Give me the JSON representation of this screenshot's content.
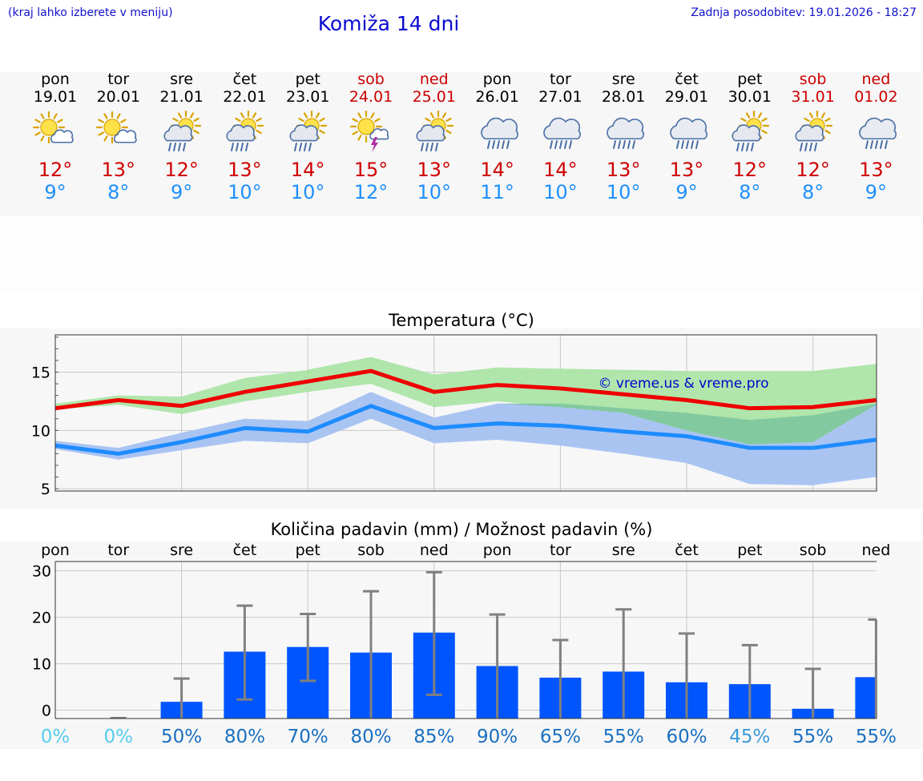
{
  "header": {
    "left_note": "(kraj lahko izberete v meniju)",
    "title": "Komiža 14 dni",
    "last_update": "Zadnja posodobitev: 19.01.2026 - 18:27"
  },
  "forecast": [
    {
      "day": "pon",
      "date": "19.01",
      "weekend": false,
      "icon": "sun-cloud-icon",
      "max": "12°",
      "min": "9°"
    },
    {
      "day": "tor",
      "date": "20.01",
      "weekend": false,
      "icon": "sun-cloud-icon",
      "max": "13°",
      "min": "8°"
    },
    {
      "day": "sre",
      "date": "21.01",
      "weekend": false,
      "icon": "sun-rain-icon",
      "max": "12°",
      "min": "9°"
    },
    {
      "day": "čet",
      "date": "22.01",
      "weekend": false,
      "icon": "sun-rain-icon",
      "max": "13°",
      "min": "10°"
    },
    {
      "day": "pet",
      "date": "23.01",
      "weekend": false,
      "icon": "sun-rain-icon",
      "max": "14°",
      "min": "10°"
    },
    {
      "day": "sob",
      "date": "24.01",
      "weekend": true,
      "icon": "sun-thunder-icon",
      "max": "15°",
      "min": "12°"
    },
    {
      "day": "ned",
      "date": "25.01",
      "weekend": true,
      "icon": "sun-rain-icon",
      "max": "13°",
      "min": "10°"
    },
    {
      "day": "pon",
      "date": "26.01",
      "weekend": false,
      "icon": "cloud-rain-icon",
      "max": "14°",
      "min": "11°"
    },
    {
      "day": "tor",
      "date": "27.01",
      "weekend": false,
      "icon": "cloud-rain-icon",
      "max": "14°",
      "min": "10°"
    },
    {
      "day": "sre",
      "date": "28.01",
      "weekend": false,
      "icon": "cloud-rain-icon",
      "max": "13°",
      "min": "10°"
    },
    {
      "day": "čet",
      "date": "29.01",
      "weekend": false,
      "icon": "cloud-rain-icon",
      "max": "13°",
      "min": "9°"
    },
    {
      "day": "pet",
      "date": "30.01",
      "weekend": false,
      "icon": "sun-rain-icon",
      "max": "12°",
      "min": "8°"
    },
    {
      "day": "sob",
      "date": "31.01",
      "weekend": true,
      "icon": "sun-rain-icon",
      "max": "12°",
      "min": "8°"
    },
    {
      "day": "ned",
      "date": "01.02",
      "weekend": true,
      "icon": "cloud-rain-icon",
      "max": "13°",
      "min": "9°"
    }
  ],
  "colors": {
    "max_line": "#ee0000",
    "min_line": "#1e8cff",
    "max_band": "#a6e4a0",
    "min_band": "#aac4f2",
    "overlap_band": "#7cc49e",
    "bar": "#0055ff",
    "whisker": "#808080",
    "credit": "#0000cc"
  },
  "chart_data": [
    {
      "type": "line",
      "title": "Temperatura (°C)",
      "xlabel": "",
      "ylabel": "",
      "ylim": [
        4.8,
        18.2
      ],
      "yticks": [
        5,
        10,
        15
      ],
      "credit": "© vreme.us & vreme.pro",
      "x": [
        0,
        1,
        2,
        3,
        4,
        5,
        6,
        7,
        8,
        9,
        10,
        11,
        12,
        13
      ],
      "series": [
        {
          "name": "max",
          "values": [
            11.9,
            12.6,
            12.1,
            13.3,
            14.2,
            15.1,
            13.3,
            13.9,
            13.6,
            13.1,
            12.6,
            11.9,
            12.0,
            12.6
          ],
          "band_low": [
            11.8,
            12.2,
            11.4,
            12.5,
            13.3,
            14.0,
            12.0,
            12.5,
            12.0,
            11.5,
            10.0,
            8.8,
            9.0,
            12.2
          ],
          "band_high": [
            12.3,
            13.0,
            12.9,
            14.5,
            15.2,
            16.3,
            14.8,
            15.4,
            15.3,
            15.2,
            15.1,
            15.1,
            15.1,
            15.7
          ]
        },
        {
          "name": "min",
          "values": [
            8.7,
            8.0,
            9.0,
            10.2,
            9.9,
            12.1,
            10.2,
            10.6,
            10.4,
            9.9,
            9.5,
            8.5,
            8.5,
            9.2
          ],
          "band_low": [
            8.4,
            7.5,
            8.3,
            9.1,
            8.9,
            11.0,
            8.9,
            9.2,
            8.7,
            8.0,
            7.2,
            5.4,
            5.3,
            6.0
          ],
          "band_high": [
            9.1,
            8.5,
            9.8,
            11.0,
            10.8,
            13.3,
            11.1,
            12.3,
            12.3,
            11.9,
            11.5,
            10.9,
            11.3,
            12.3
          ]
        }
      ]
    },
    {
      "type": "bar",
      "title": "Količina padavin (mm) / Možnost padavin (%)",
      "categories": [
        "pon",
        "tor",
        "sre",
        "čet",
        "pet",
        "sob",
        "ned",
        "pon",
        "tor",
        "sre",
        "čet",
        "pet",
        "sob",
        "ned"
      ],
      "ylim": [
        -1.8,
        32
      ],
      "yticks": [
        0,
        10,
        20,
        30
      ],
      "values": [
        0,
        0,
        1.8,
        12.6,
        13.6,
        12.4,
        16.7,
        9.5,
        7.0,
        8.3,
        6.0,
        5.6,
        0.3,
        7.1
      ],
      "error_low": [
        0,
        0,
        0,
        2.3,
        6.3,
        0,
        3.3,
        0,
        0,
        0,
        0,
        0,
        0,
        0
      ],
      "error_high": [
        0,
        0,
        6.8,
        22.5,
        20.7,
        25.6,
        29.7,
        20.6,
        15.1,
        21.7,
        16.5,
        14.0,
        8.9,
        19.5
      ],
      "probability": [
        "0%",
        "0%",
        "50%",
        "80%",
        "70%",
        "80%",
        "85%",
        "90%",
        "65%",
        "55%",
        "60%",
        "45%",
        "55%",
        "55%"
      ],
      "probability_colors": [
        "#55ccee",
        "#55ccee",
        "#1a6fc0",
        "#1a6fc0",
        "#1a6fc0",
        "#1a6fc0",
        "#1a6fc0",
        "#1a6fc0",
        "#1a6fc0",
        "#1a6fc0",
        "#1a6fc0",
        "#3a9ad8",
        "#1a6fc0",
        "#1a6fc0"
      ]
    }
  ]
}
